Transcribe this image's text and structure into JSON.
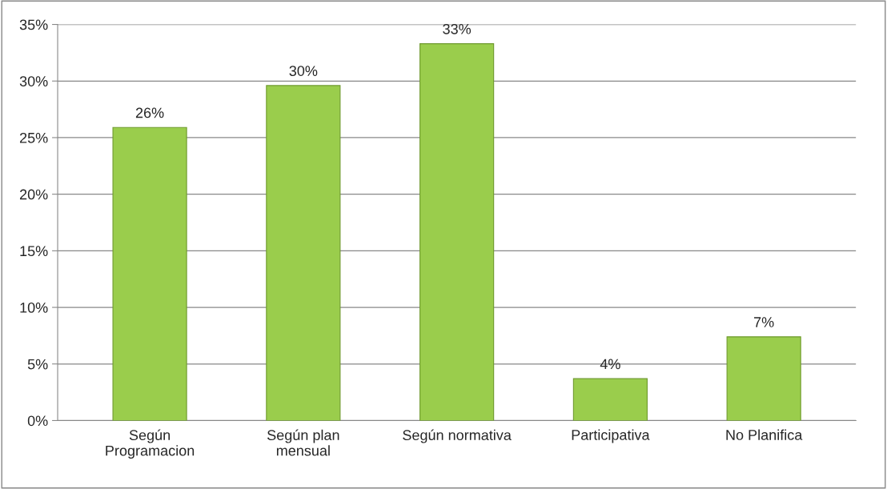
{
  "chart_data": {
    "type": "bar",
    "categories": [
      "Según\nProgramacion",
      "Según plan\nmensual",
      "Según normativa",
      "Participativa",
      "No Planifica"
    ],
    "values": [
      25.9,
      29.6,
      33.3,
      3.7,
      7.4
    ],
    "value_labels": [
      "26%",
      "30%",
      "33%",
      "4%",
      "7%"
    ],
    "color": "#9acd4c",
    "ylim": [
      0,
      35
    ],
    "yticks": [
      {
        "value": 0,
        "label": "0%"
      },
      {
        "value": 5,
        "label": "5%"
      },
      {
        "value": 10,
        "label": "10%"
      },
      {
        "value": 15,
        "label": "15%"
      },
      {
        "value": 20,
        "label": "20%"
      },
      {
        "value": 25,
        "label": "25%"
      },
      {
        "value": 30,
        "label": "30%"
      },
      {
        "value": 35,
        "label": "35%"
      }
    ],
    "grid": "y"
  }
}
